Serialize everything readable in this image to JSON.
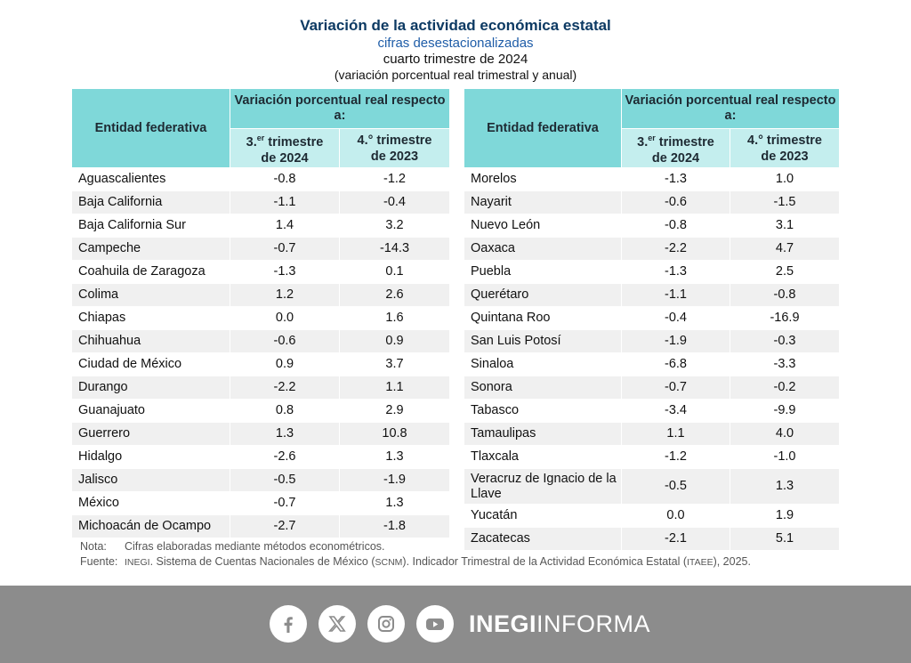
{
  "header": {
    "title": "Variación de la actividad económica estatal",
    "subtitle": "cifras desestacionalizadas",
    "period": "cuarto trimestre de 2024",
    "note": "(variación porcentual real trimestral y anual)"
  },
  "columns": {
    "entity": "Entidad federativa",
    "group": "Variación porcentual real respecto a:",
    "col1_a": "3.",
    "col1_sup": "er",
    "col1_b": " trimestre",
    "col1_year": "de 2024",
    "col2": "4.° trimestre",
    "col2_year": "de 2023"
  },
  "left_rows": [
    {
      "name": "Aguascalientes",
      "q": "-0.8",
      "a": "-1.2"
    },
    {
      "name": "Baja California",
      "q": "-1.1",
      "a": "-0.4"
    },
    {
      "name": "Baja California Sur",
      "q": "1.4",
      "a": "3.2"
    },
    {
      "name": "Campeche",
      "q": "-0.7",
      "a": "-14.3"
    },
    {
      "name": "Coahuila de Zaragoza",
      "q": "-1.3",
      "a": "0.1"
    },
    {
      "name": "Colima",
      "q": "1.2",
      "a": "2.6"
    },
    {
      "name": "Chiapas",
      "q": "0.0",
      "a": "1.6"
    },
    {
      "name": "Chihuahua",
      "q": "-0.6",
      "a": "0.9"
    },
    {
      "name": "Ciudad de México",
      "q": "0.9",
      "a": "3.7"
    },
    {
      "name": "Durango",
      "q": "-2.2",
      "a": "1.1"
    },
    {
      "name": "Guanajuato",
      "q": "0.8",
      "a": "2.9"
    },
    {
      "name": "Guerrero",
      "q": "1.3",
      "a": "10.8"
    },
    {
      "name": "Hidalgo",
      "q": "-2.6",
      "a": "1.3"
    },
    {
      "name": "Jalisco",
      "q": "-0.5",
      "a": "-1.9"
    },
    {
      "name": "México",
      "q": "-0.7",
      "a": "1.3"
    },
    {
      "name": "Michoacán de Ocampo",
      "q": "-2.7",
      "a": "-1.8"
    }
  ],
  "right_rows": [
    {
      "name": "Morelos",
      "q": "-1.3",
      "a": "1.0"
    },
    {
      "name": "Nayarit",
      "q": "-0.6",
      "a": "-1.5"
    },
    {
      "name": "Nuevo León",
      "q": "-0.8",
      "a": "3.1"
    },
    {
      "name": "Oaxaca",
      "q": "-2.2",
      "a": "4.7"
    },
    {
      "name": "Puebla",
      "q": "-1.3",
      "a": "2.5"
    },
    {
      "name": "Querétaro",
      "q": "-1.1",
      "a": "-0.8"
    },
    {
      "name": "Quintana Roo",
      "q": "-0.4",
      "a": "-16.9"
    },
    {
      "name": "San Luis Potosí",
      "q": "-1.9",
      "a": "-0.3"
    },
    {
      "name": "Sinaloa",
      "q": "-6.8",
      "a": "-3.3"
    },
    {
      "name": "Sonora",
      "q": "-0.7",
      "a": "-0.2"
    },
    {
      "name": "Tabasco",
      "q": "-3.4",
      "a": "-9.9"
    },
    {
      "name": "Tamaulipas",
      "q": "1.1",
      "a": "4.0"
    },
    {
      "name": "Tlaxcala",
      "q": "-1.2",
      "a": "-1.0"
    },
    {
      "name": "Veracruz de Ignacio de la Llave",
      "q": "-0.5",
      "a": "1.3"
    },
    {
      "name": "Yucatán",
      "q": "0.0",
      "a": "1.9"
    },
    {
      "name": "Zacatecas",
      "q": "-2.1",
      "a": "5.1"
    }
  ],
  "notes": {
    "nota_label": "Nota:",
    "nota_text": "Cifras elaboradas mediante métodos econométricos.",
    "fuente_label": "Fuente:",
    "inegi": "INEGI",
    "fuente_1": ". Sistema de Cuentas Nacionales de México (",
    "scnm": "SCNM",
    "fuente_2": "). Indicador Trimestral de la Actividad Económica Estatal (",
    "itaee": "ITAEE",
    "fuente_3": "), 2025."
  },
  "footer": {
    "brand_bold": "INEGI",
    "brand_light": "INFORMA",
    "icons": [
      "facebook-icon",
      "x-icon",
      "instagram-icon",
      "youtube-icon"
    ]
  },
  "colors": {
    "header_band": "#7fd8d9",
    "subheader_band": "#c4eeee",
    "title": "#0d3a63",
    "subtitle": "#1f5da8",
    "footer_bg": "#8c8c8c"
  }
}
